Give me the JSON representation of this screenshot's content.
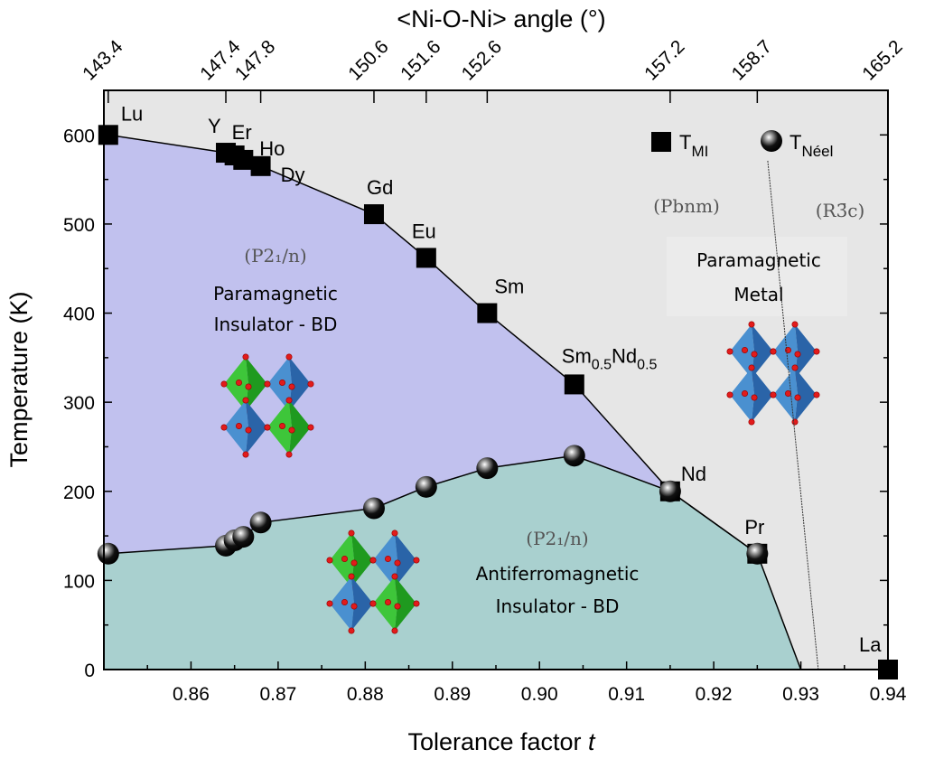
{
  "chart_data": {
    "type": "scatter",
    "title": "",
    "xlabel": "Tolerance factor t",
    "xlabel_main": "Tolerance factor ",
    "xlabel_italic": "t",
    "ylabel": "Temperature (K)",
    "top_xlabel": "<Ni-O-Ni> angle (°)",
    "xlim": [
      0.85,
      0.94
    ],
    "ylim": [
      0,
      650
    ],
    "x_ticks": [
      "0.86",
      "0.87",
      "0.88",
      "0.89",
      "0.90",
      "0.91",
      "0.92",
      "0.93",
      "0.94"
    ],
    "y_ticks": [
      "0",
      "100",
      "200",
      "300",
      "400",
      "500",
      "600"
    ],
    "top_ticks": [
      {
        "t": 0.8505,
        "label": "143.4"
      },
      {
        "t": 0.864,
        "label": "147.4"
      },
      {
        "t": 0.868,
        "label": "147.8"
      },
      {
        "t": 0.881,
        "label": "150.6"
      },
      {
        "t": 0.887,
        "label": "151.6"
      },
      {
        "t": 0.894,
        "label": "152.6"
      },
      {
        "t": 0.915,
        "label": "157.2"
      },
      {
        "t": 0.925,
        "label": "158.7"
      },
      {
        "t": 0.94,
        "label": "165.2"
      }
    ],
    "series": [
      {
        "name": "T_MI",
        "legend_base": "T",
        "legend_sub": "MI",
        "marker": "square",
        "points": [
          {
            "label": "Lu",
            "t": 0.8505,
            "T": 600
          },
          {
            "label": "Y",
            "t": 0.864,
            "T": 580
          },
          {
            "label": "Er",
            "t": 0.865,
            "T": 577
          },
          {
            "label": "Ho",
            "t": 0.866,
            "T": 572
          },
          {
            "label": "Dy",
            "t": 0.868,
            "T": 565
          },
          {
            "label": "Gd",
            "t": 0.881,
            "T": 511
          },
          {
            "label": "Eu",
            "t": 0.887,
            "T": 462
          },
          {
            "label": "Sm",
            "t": 0.894,
            "T": 400
          },
          {
            "label": "Sm0.5Nd0.5",
            "t": 0.904,
            "T": 320
          },
          {
            "label": "Nd",
            "t": 0.915,
            "T": 200
          },
          {
            "label": "Pr",
            "t": 0.925,
            "T": 130
          },
          {
            "label": "La",
            "t": 0.94,
            "T": 0
          }
        ]
      },
      {
        "name": "T_Néel",
        "legend_base": "T",
        "legend_sub": "Néel",
        "marker": "sphere",
        "points": [
          {
            "t": 0.8505,
            "T": 130
          },
          {
            "t": 0.864,
            "T": 139
          },
          {
            "t": 0.865,
            "T": 145
          },
          {
            "t": 0.866,
            "T": 149
          },
          {
            "t": 0.868,
            "T": 165
          },
          {
            "t": 0.881,
            "T": 181
          },
          {
            "t": 0.887,
            "T": 205
          },
          {
            "t": 0.894,
            "T": 226
          },
          {
            "t": 0.904,
            "T": 240
          },
          {
            "t": 0.915,
            "T": 200
          },
          {
            "t": 0.925,
            "T": 130
          }
        ]
      }
    ],
    "phase_boundary_end": {
      "t": 0.93,
      "T": 0
    },
    "structural_boundary": [
      {
        "t": 0.9262,
        "T": 571
      },
      {
        "t": 0.932,
        "T": 0
      }
    ],
    "regions": {
      "pm_insulator": {
        "group": "(P2₁/n)",
        "line1": "Paramagnetic",
        "line2": "Insulator - BD",
        "color": "#c1c1ee"
      },
      "afm_insulator": {
        "group": "(P2₁/n)",
        "line1": "Antiferromagnetic",
        "line2": "Insulator - BD",
        "color": "#a9d0cf"
      },
      "pm_metal": {
        "group_left": "(Pbnm)",
        "group_right": "(R3̄c)",
        "line1": "Paramagnetic",
        "line2": "Metal",
        "color": "#e6e6e6"
      }
    }
  }
}
